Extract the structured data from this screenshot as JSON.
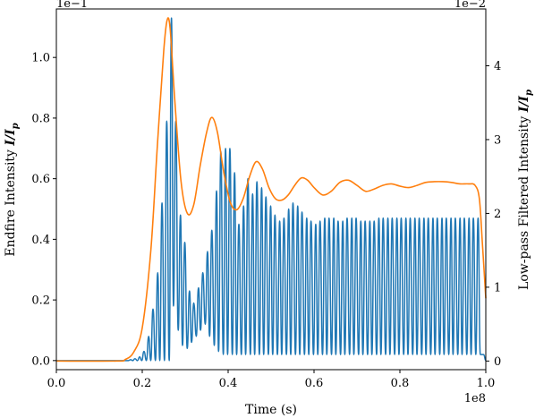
{
  "chart_data": {
    "type": "line",
    "title": "",
    "xlabel": "Time (s)",
    "ylabel_left": "Endfire Intensity I/I_p",
    "ylabel_left_parts": {
      "prefix": "Endfire Intensity ",
      "I": "I",
      "slash": "/",
      "Ip": "I",
      "sub": "p"
    },
    "ylabel_right": "Low-pass Filtered Intensity I/I_p",
    "ylabel_right_parts": {
      "prefix": "Low-pass Filtered Intensity ",
      "I": "I",
      "slash": "/",
      "Ip": "I",
      "sub": "p"
    },
    "x_offset_label": "1e8",
    "y_left_offset_label": "1e−1",
    "y_right_offset_label": "1e−2",
    "xlim": [
      0.0,
      1.0
    ],
    "ylim_left": [
      -0.03,
      1.16
    ],
    "ylim_right": [
      -0.117,
      4.77
    ],
    "xticks": [
      0.0,
      0.2,
      0.4,
      0.6,
      0.8,
      1.0
    ],
    "xtick_labels": [
      "0.0",
      "0.2",
      "0.4",
      "0.6",
      "0.8",
      "1.0"
    ],
    "yticks_left": [
      0.0,
      0.2,
      0.4,
      0.6,
      0.8,
      1.0
    ],
    "ytick_labels_left": [
      "0.0",
      "0.2",
      "0.4",
      "0.6",
      "0.8",
      "1.0"
    ],
    "yticks_right": [
      0,
      1,
      2,
      3,
      4
    ],
    "ytick_labels_right": [
      "0",
      "1",
      "2",
      "3",
      "4"
    ],
    "grid": false,
    "legend": "none",
    "series": [
      {
        "axis": "left",
        "color": "#1f77b4",
        "kind": "oscillation",
        "description_points": {
          "peaks_t": [
            0.173,
            0.183,
            0.194,
            0.204,
            0.215,
            0.225,
            0.236,
            0.246,
            0.257,
            0.268,
            0.278,
            0.289,
            0.299,
            0.31,
            0.32,
            0.331,
            0.341,
            0.352,
            0.362,
            0.373,
            0.383,
            0.394,
            0.404,
            0.415,
            0.425,
            0.436,
            0.446,
            0.457,
            0.467,
            0.478,
            0.488,
            0.499,
            0.509,
            0.52,
            0.53,
            0.541,
            0.551,
            0.562,
            0.572,
            0.583,
            0.593,
            0.604,
            0.614,
            0.625,
            0.635,
            0.646,
            0.656,
            0.667,
            0.677,
            0.688,
            0.698,
            0.709,
            0.719,
            0.73,
            0.74,
            0.751,
            0.761,
            0.772,
            0.782,
            0.793,
            0.803,
            0.814,
            0.824,
            0.835,
            0.845,
            0.856,
            0.866,
            0.877,
            0.887,
            0.898,
            0.908,
            0.919,
            0.929,
            0.94,
            0.95,
            0.961,
            0.971,
            0.982
          ],
          "peaks_y": [
            0.003,
            0.006,
            0.012,
            0.03,
            0.08,
            0.17,
            0.29,
            0.52,
            0.79,
            1.13,
            0.79,
            0.48,
            0.39,
            0.23,
            0.19,
            0.24,
            0.29,
            0.36,
            0.43,
            0.56,
            0.69,
            0.7,
            0.7,
            0.62,
            0.45,
            0.51,
            0.6,
            0.55,
            0.59,
            0.57,
            0.54,
            0.51,
            0.48,
            0.46,
            0.47,
            0.5,
            0.52,
            0.51,
            0.49,
            0.47,
            0.46,
            0.45,
            0.46,
            0.47,
            0.47,
            0.47,
            0.46,
            0.46,
            0.47,
            0.47,
            0.47,
            0.46,
            0.46,
            0.46,
            0.46,
            0.47,
            0.47,
            0.47,
            0.47,
            0.47,
            0.47,
            0.47,
            0.47,
            0.47,
            0.47,
            0.47,
            0.47,
            0.47,
            0.47,
            0.47,
            0.47,
            0.47,
            0.47,
            0.47,
            0.47,
            0.47,
            0.47,
            0.47
          ],
          "troughs_y": [
            0.0,
            0.0,
            0.0,
            0.0,
            0.0,
            0.0,
            0.0,
            0.0,
            0.0,
            0.0,
            0.18,
            0.1,
            0.05,
            0.04,
            0.06,
            0.08,
            0.1,
            0.12,
            0.08,
            0.05,
            0.03,
            0.02,
            0.02,
            0.02,
            0.02,
            0.02,
            0.02,
            0.02,
            0.02,
            0.02,
            0.02,
            0.02,
            0.02,
            0.02,
            0.02,
            0.02,
            0.02,
            0.02,
            0.02,
            0.02,
            0.02,
            0.02,
            0.02,
            0.02,
            0.02,
            0.02,
            0.02,
            0.02,
            0.02,
            0.02,
            0.02,
            0.02,
            0.02,
            0.02,
            0.02,
            0.02,
            0.02,
            0.02,
            0.02,
            0.02,
            0.02,
            0.02,
            0.02,
            0.02,
            0.02,
            0.02,
            0.02,
            0.02,
            0.02,
            0.02,
            0.02,
            0.02,
            0.02,
            0.02,
            0.02,
            0.02,
            0.02,
            0.02
          ],
          "end_drop_t": 0.995
        }
      },
      {
        "axis": "right",
        "color": "#ff7f0e",
        "kind": "envelope",
        "x": [
          0.0,
          0.14,
          0.16,
          0.18,
          0.2,
          0.22,
          0.235,
          0.25,
          0.258,
          0.265,
          0.275,
          0.29,
          0.305,
          0.32,
          0.335,
          0.35,
          0.362,
          0.375,
          0.39,
          0.405,
          0.42,
          0.435,
          0.45,
          0.465,
          0.48,
          0.495,
          0.51,
          0.525,
          0.54,
          0.555,
          0.57,
          0.585,
          0.6,
          0.62,
          0.64,
          0.66,
          0.68,
          0.7,
          0.72,
          0.74,
          0.76,
          0.78,
          0.8,
          0.82,
          0.84,
          0.86,
          0.88,
          0.9,
          0.92,
          0.94,
          0.96,
          0.975,
          0.985,
          0.992,
          1.0
        ],
        "y": [
          0.0,
          0.0,
          0.02,
          0.12,
          0.45,
          1.5,
          2.9,
          4.2,
          4.62,
          4.5,
          3.6,
          2.45,
          2.0,
          2.12,
          2.65,
          3.1,
          3.3,
          3.1,
          2.55,
          2.15,
          2.05,
          2.2,
          2.5,
          2.7,
          2.6,
          2.35,
          2.2,
          2.18,
          2.25,
          2.38,
          2.48,
          2.45,
          2.35,
          2.25,
          2.3,
          2.42,
          2.45,
          2.38,
          2.3,
          2.33,
          2.38,
          2.4,
          2.37,
          2.35,
          2.38,
          2.42,
          2.43,
          2.43,
          2.42,
          2.4,
          2.4,
          2.38,
          2.2,
          1.6,
          0.85
        ]
      }
    ]
  }
}
